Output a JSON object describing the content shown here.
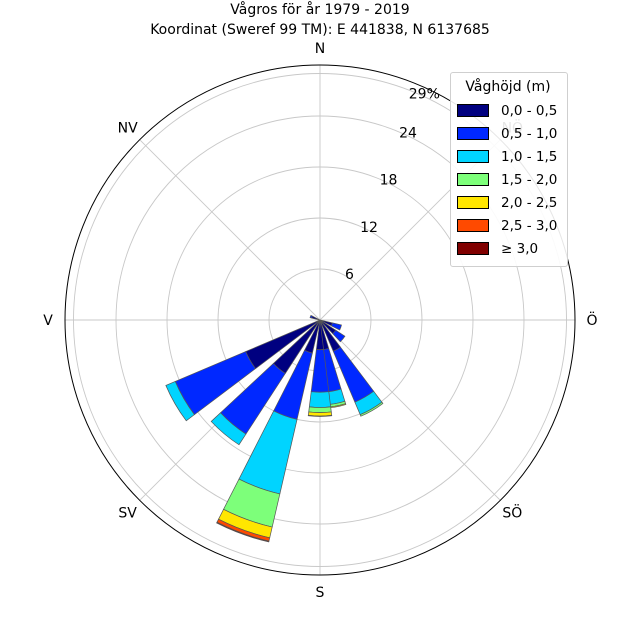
{
  "title": "Vågros för år 1979 - 2019",
  "subtitle": "Koordinat (Sweref 99 TM): E 441838, N 6137685",
  "chart_data": {
    "type": "polar-stacked-bar",
    "title": "Vågros för år 1979 - 2019",
    "subtitle": "Koordinat (Sweref 99 TM): E 441838, N 6137685",
    "direction_labels": [
      "N",
      "NV",
      "V",
      "SV",
      "S",
      "SÖ",
      "Ö",
      "NÖ"
    ],
    "radial_ticks": [
      "6",
      "12",
      "18",
      "24",
      "29%"
    ],
    "radial_tick_values": [
      6,
      12,
      18,
      24,
      29
    ],
    "rmax": 30,
    "grid": true,
    "sectors": [
      {
        "direction_deg": 110,
        "values": [
          1.5,
          1.1,
          0,
          0,
          0,
          0,
          0
        ]
      },
      {
        "direction_deg": 130,
        "values": [
          2.2,
          1.3,
          0,
          0,
          0,
          0,
          0
        ]
      },
      {
        "direction_deg": 150,
        "values": [
          4.0,
          6.5,
          1.6,
          0.2,
          0,
          0,
          0
        ]
      },
      {
        "direction_deg": 170,
        "values": [
          3.5,
          5.0,
          1.5,
          0.3,
          0.1,
          0,
          0
        ]
      },
      {
        "direction_deg": 180,
        "values": [
          3.5,
          5.0,
          1.8,
          0.6,
          0.4,
          0.05,
          0
        ]
      },
      {
        "direction_deg": 200,
        "values": [
          4.0,
          8.0,
          9.0,
          4.0,
          1.3,
          0.4,
          0.1
        ]
      },
      {
        "direction_deg": 220,
        "values": [
          7.5,
          8.5,
          1.5,
          0,
          0,
          0,
          0
        ]
      },
      {
        "direction_deg": 240,
        "values": [
          9.5,
          9.0,
          1.2,
          0,
          0,
          0,
          0
        ]
      },
      {
        "direction_deg": 290,
        "values": [
          1.0,
          0.2,
          0,
          0,
          0,
          0,
          0
        ]
      }
    ],
    "sector_width_deg": 14,
    "legend": {
      "title": "Våghöjd (m)",
      "placement": "top-right",
      "items": [
        {
          "label": "0,0 - 0,5",
          "color": "#000080"
        },
        {
          "label": "0,5 - 1,0",
          "color": "#0028ff"
        },
        {
          "label": "1,0 - 1,5",
          "color": "#00d4ff"
        },
        {
          "label": "1,5 - 2,0",
          "color": "#7dff7a"
        },
        {
          "label": "2,0 - 2,5",
          "color": "#ffe600"
        },
        {
          "label": "2,5 - 3,0",
          "color": "#ff4a00"
        },
        {
          "label": "≥ 3,0",
          "color": "#800000"
        }
      ]
    }
  }
}
